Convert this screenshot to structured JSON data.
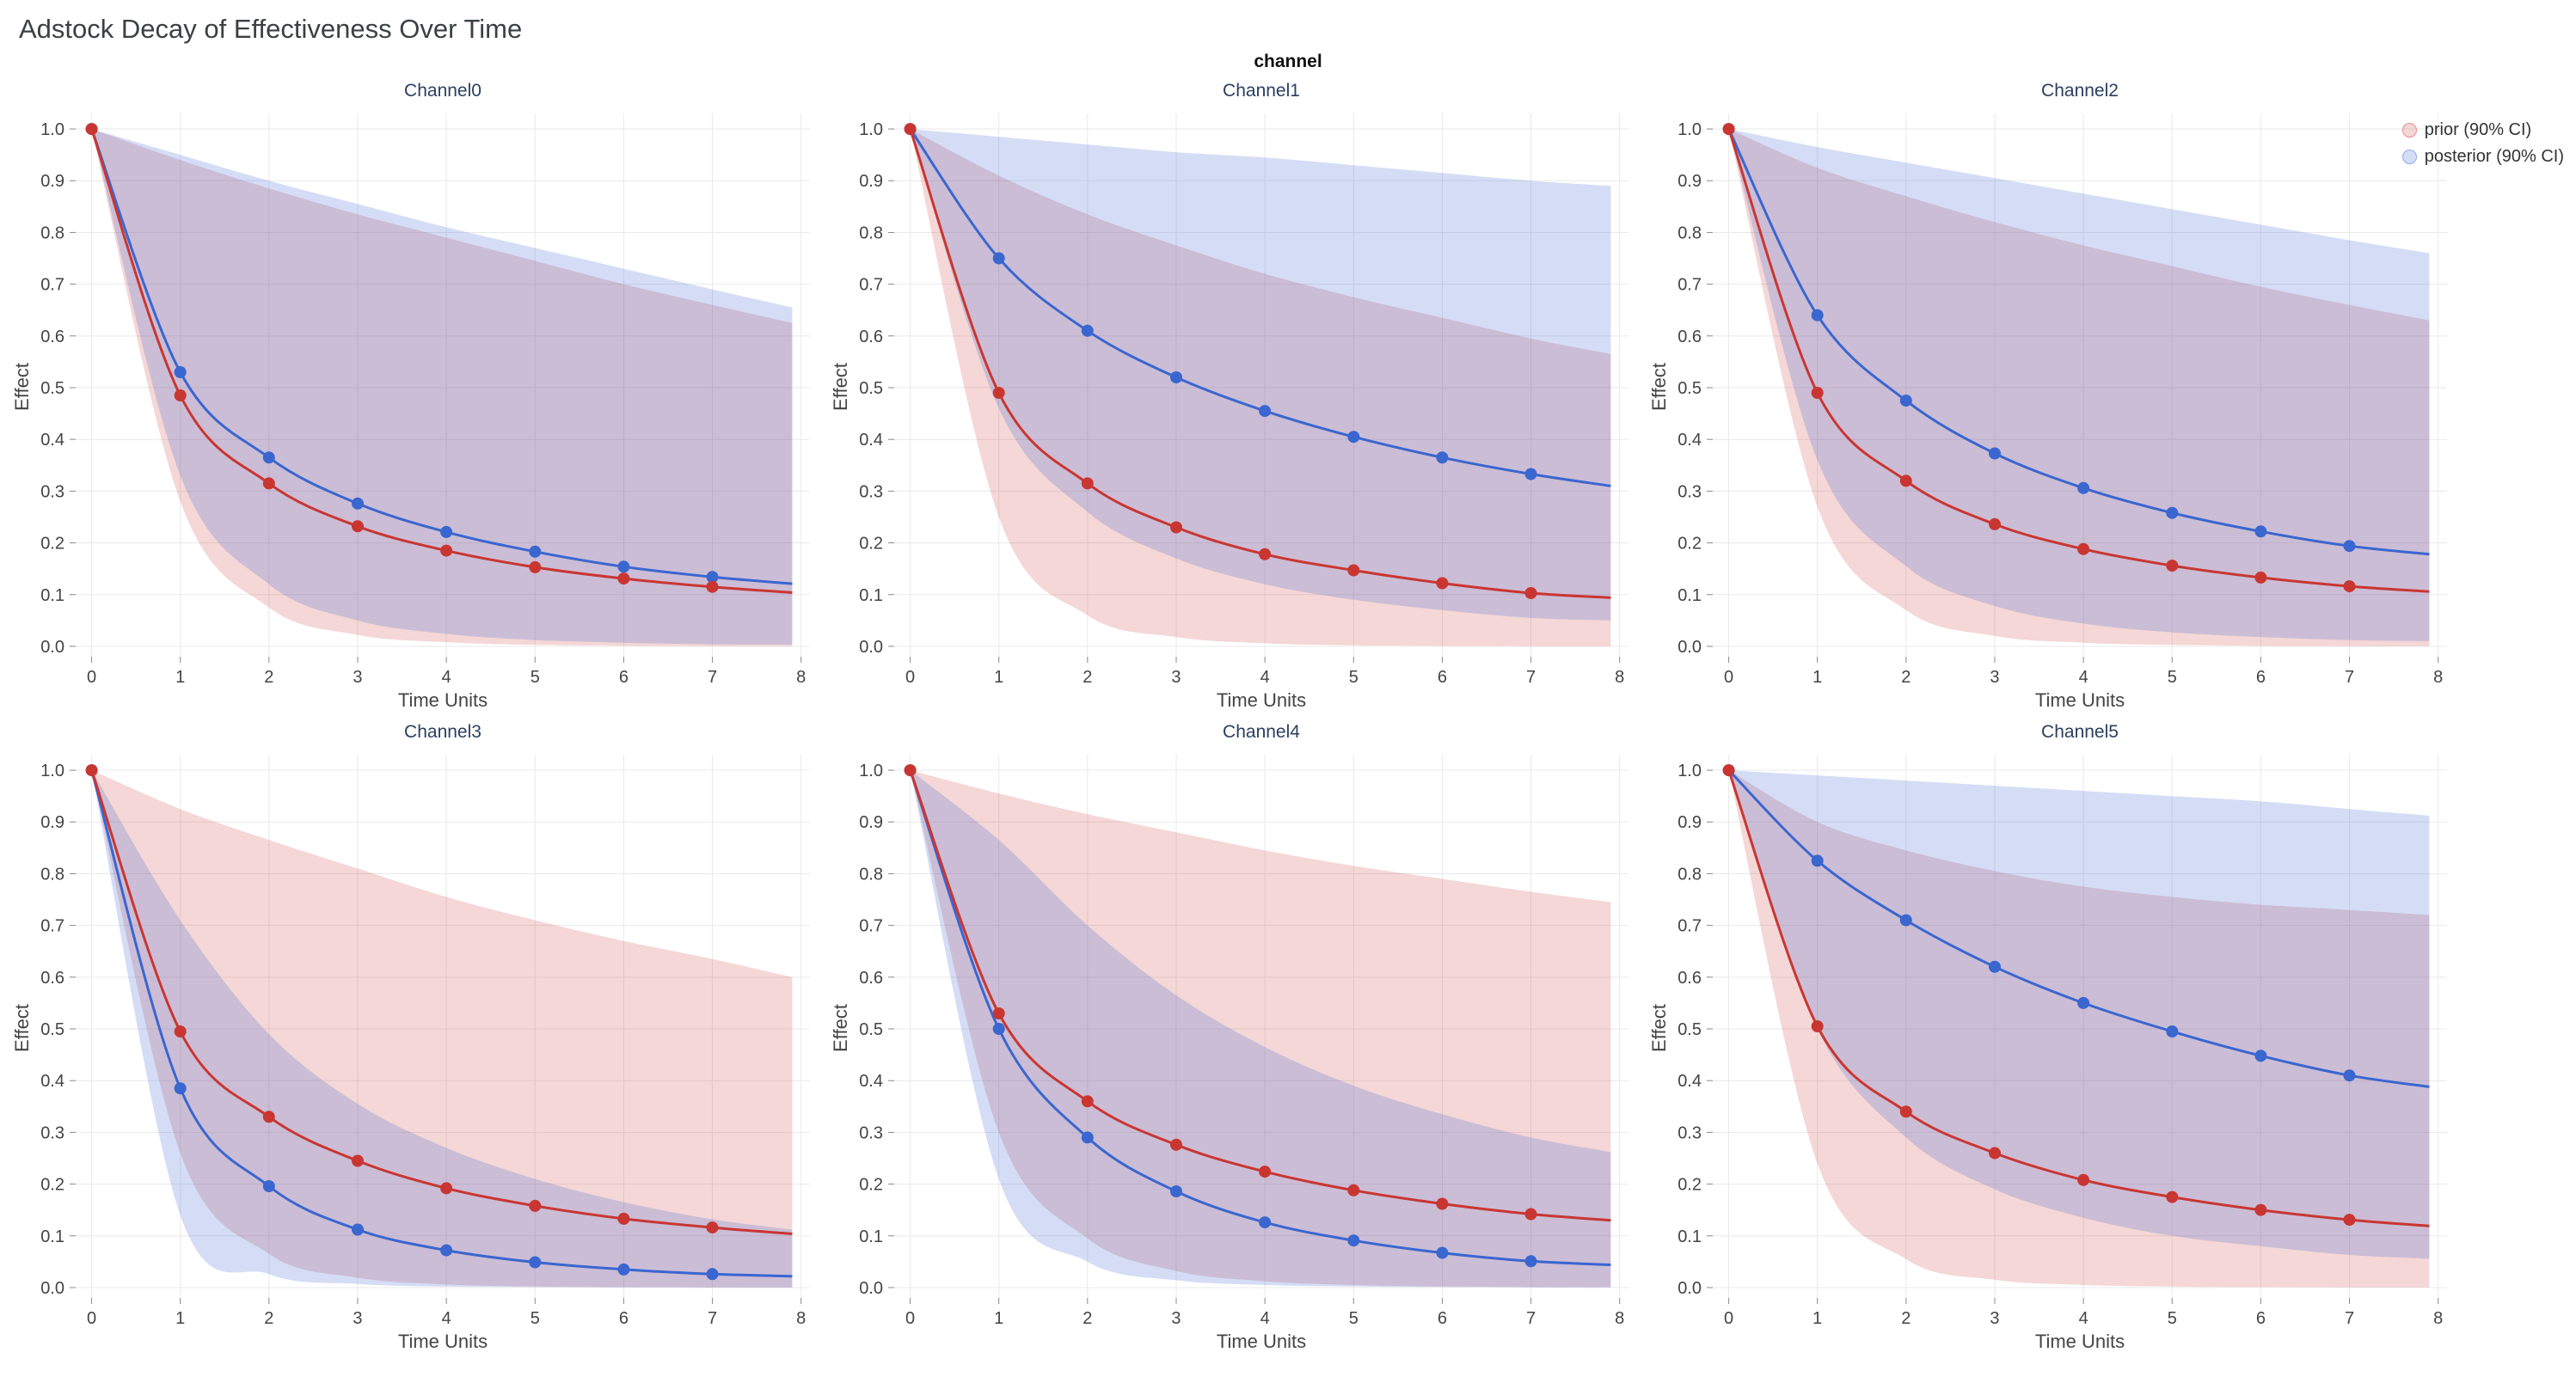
{
  "page_title": "Adstock Decay of Effectiveness Over Time",
  "facet_label": "channel",
  "legend": {
    "items": [
      {
        "label": "prior (90% CI)",
        "series": "prior"
      },
      {
        "label": "posterior (90% CI)",
        "series": "posterior"
      }
    ]
  },
  "axes": {
    "xlabel": "Time Units",
    "ylabel": "Effect",
    "x_ticks": [
      0,
      1,
      2,
      3,
      4,
      5,
      6,
      7,
      8
    ],
    "y_ticks": [
      0,
      0.1,
      0.2,
      0.3,
      0.4,
      0.5,
      0.6,
      0.7,
      0.8,
      0.9,
      1.0
    ],
    "x_range": [
      -0.18,
      8.1
    ],
    "y_range": [
      -0.02,
      1.03
    ],
    "grid": true
  },
  "colors": {
    "prior": "#c93632",
    "posterior": "#3a66d0",
    "prior_band": "rgba(201,54,50,0.20)",
    "posterior_band": "rgba(58,102,208,0.22)",
    "prior_band_border": "rgba(201,54,50,0.45)",
    "posterior_band_border": "rgba(58,102,208,0.45)",
    "gridline": "#e9e9e9",
    "tick": "#888"
  },
  "x_points": [
    0,
    1,
    2,
    3,
    4,
    5,
    6,
    7,
    7.9
  ],
  "chart_data": [
    {
      "type": "line",
      "title": "Channel0",
      "x": [
        0,
        1,
        2,
        3,
        4,
        5,
        6,
        7,
        7.9
      ],
      "series": [
        {
          "name": "prior",
          "mean": [
            1.0,
            0.485,
            0.315,
            0.232,
            0.185,
            0.153,
            0.131,
            0.115,
            0.104
          ],
          "ci_upper": [
            1.0,
            0.94,
            0.885,
            0.835,
            0.79,
            0.745,
            0.7,
            0.66,
            0.625
          ],
          "ci_lower": [
            1.0,
            0.28,
            0.075,
            0.022,
            0.008,
            0.003,
            0.001,
            0.0005,
            0.0003
          ]
        },
        {
          "name": "posterior",
          "mean": [
            1.0,
            0.53,
            0.365,
            0.276,
            0.221,
            0.183,
            0.154,
            0.134,
            0.121
          ],
          "ci_upper": [
            1.0,
            0.95,
            0.9,
            0.855,
            0.81,
            0.77,
            0.73,
            0.69,
            0.655
          ],
          "ci_lower": [
            1.0,
            0.33,
            0.12,
            0.05,
            0.024,
            0.012,
            0.007,
            0.004,
            0.003
          ]
        }
      ]
    },
    {
      "type": "line",
      "title": "Channel1",
      "x": [
        0,
        1,
        2,
        3,
        4,
        5,
        6,
        7,
        7.9
      ],
      "series": [
        {
          "name": "prior",
          "mean": [
            1.0,
            0.49,
            0.315,
            0.23,
            0.178,
            0.147,
            0.122,
            0.103,
            0.094
          ],
          "ci_upper": [
            1.0,
            0.91,
            0.835,
            0.775,
            0.72,
            0.675,
            0.635,
            0.595,
            0.565
          ],
          "ci_lower": [
            1.0,
            0.25,
            0.06,
            0.018,
            0.006,
            0.002,
            0.001,
            0.0005,
            0.0003
          ]
        },
        {
          "name": "posterior",
          "mean": [
            1.0,
            0.75,
            0.61,
            0.52,
            0.455,
            0.405,
            0.365,
            0.333,
            0.31
          ],
          "ci_upper": [
            1.0,
            0.985,
            0.97,
            0.955,
            0.945,
            0.93,
            0.915,
            0.9,
            0.89
          ],
          "ci_lower": [
            1.0,
            0.46,
            0.26,
            0.17,
            0.12,
            0.09,
            0.07,
            0.055,
            0.05
          ]
        }
      ]
    },
    {
      "type": "line",
      "title": "Channel2",
      "x": [
        0,
        1,
        2,
        3,
        4,
        5,
        6,
        7,
        7.9
      ],
      "series": [
        {
          "name": "prior",
          "mean": [
            1.0,
            0.49,
            0.32,
            0.236,
            0.188,
            0.156,
            0.133,
            0.116,
            0.106
          ],
          "ci_upper": [
            1.0,
            0.925,
            0.87,
            0.82,
            0.775,
            0.735,
            0.695,
            0.66,
            0.63
          ],
          "ci_lower": [
            1.0,
            0.27,
            0.07,
            0.02,
            0.007,
            0.003,
            0.001,
            0.0005,
            0.0003
          ]
        },
        {
          "name": "posterior",
          "mean": [
            1.0,
            0.64,
            0.475,
            0.373,
            0.306,
            0.258,
            0.222,
            0.194,
            0.178
          ],
          "ci_upper": [
            1.0,
            0.965,
            0.935,
            0.905,
            0.875,
            0.845,
            0.815,
            0.785,
            0.76
          ],
          "ci_lower": [
            1.0,
            0.36,
            0.155,
            0.078,
            0.044,
            0.027,
            0.018,
            0.012,
            0.01
          ]
        }
      ]
    },
    {
      "type": "line",
      "title": "Channel3",
      "x": [
        0,
        1,
        2,
        3,
        4,
        5,
        6,
        7,
        7.9
      ],
      "series": [
        {
          "name": "prior",
          "mean": [
            1.0,
            0.495,
            0.33,
            0.245,
            0.192,
            0.158,
            0.133,
            0.116,
            0.104
          ],
          "ci_upper": [
            1.0,
            0.925,
            0.865,
            0.81,
            0.755,
            0.71,
            0.67,
            0.635,
            0.6
          ],
          "ci_lower": [
            1.0,
            0.26,
            0.065,
            0.019,
            0.006,
            0.002,
            0.001,
            0.0005,
            0.0003
          ]
        },
        {
          "name": "posterior",
          "mean": [
            1.0,
            0.385,
            0.196,
            0.112,
            0.072,
            0.049,
            0.035,
            0.026,
            0.022
          ],
          "ci_upper": [
            1.0,
            0.71,
            0.49,
            0.355,
            0.27,
            0.21,
            0.165,
            0.132,
            0.112
          ],
          "ci_lower": [
            1.0,
            0.14,
            0.026,
            0.007,
            0.002,
            0.001,
            0.0005,
            0.0002,
            0.0001
          ]
        }
      ]
    },
    {
      "type": "line",
      "title": "Channel4",
      "x": [
        0,
        1,
        2,
        3,
        4,
        5,
        6,
        7,
        7.9
      ],
      "series": [
        {
          "name": "prior",
          "mean": [
            1.0,
            0.53,
            0.36,
            0.276,
            0.224,
            0.188,
            0.162,
            0.142,
            0.13
          ],
          "ci_upper": [
            1.0,
            0.955,
            0.915,
            0.88,
            0.845,
            0.815,
            0.79,
            0.765,
            0.745
          ],
          "ci_lower": [
            1.0,
            0.3,
            0.095,
            0.032,
            0.012,
            0.005,
            0.002,
            0.001,
            0.0005
          ]
        },
        {
          "name": "posterior",
          "mean": [
            1.0,
            0.5,
            0.29,
            0.186,
            0.126,
            0.091,
            0.067,
            0.051,
            0.044
          ],
          "ci_upper": [
            1.0,
            0.865,
            0.7,
            0.565,
            0.465,
            0.39,
            0.335,
            0.29,
            0.262
          ],
          "ci_lower": [
            1.0,
            0.21,
            0.05,
            0.014,
            0.005,
            0.002,
            0.001,
            0.0004,
            0.0002
          ]
        }
      ]
    },
    {
      "type": "line",
      "title": "Channel5",
      "x": [
        0,
        1,
        2,
        3,
        4,
        5,
        6,
        7,
        7.9
      ],
      "series": [
        {
          "name": "prior",
          "mean": [
            1.0,
            0.505,
            0.34,
            0.26,
            0.208,
            0.175,
            0.15,
            0.131,
            0.119
          ],
          "ci_upper": [
            1.0,
            0.9,
            0.845,
            0.805,
            0.775,
            0.755,
            0.74,
            0.73,
            0.72
          ],
          "ci_lower": [
            1.0,
            0.24,
            0.055,
            0.015,
            0.005,
            0.002,
            0.001,
            0.0004,
            0.0002
          ]
        },
        {
          "name": "posterior",
          "mean": [
            1.0,
            0.825,
            0.71,
            0.62,
            0.55,
            0.495,
            0.448,
            0.41,
            0.388
          ],
          "ci_upper": [
            1.0,
            0.99,
            0.98,
            0.97,
            0.96,
            0.95,
            0.94,
            0.925,
            0.912
          ],
          "ci_lower": [
            1.0,
            0.5,
            0.29,
            0.19,
            0.135,
            0.1,
            0.08,
            0.063,
            0.056
          ]
        }
      ]
    }
  ]
}
